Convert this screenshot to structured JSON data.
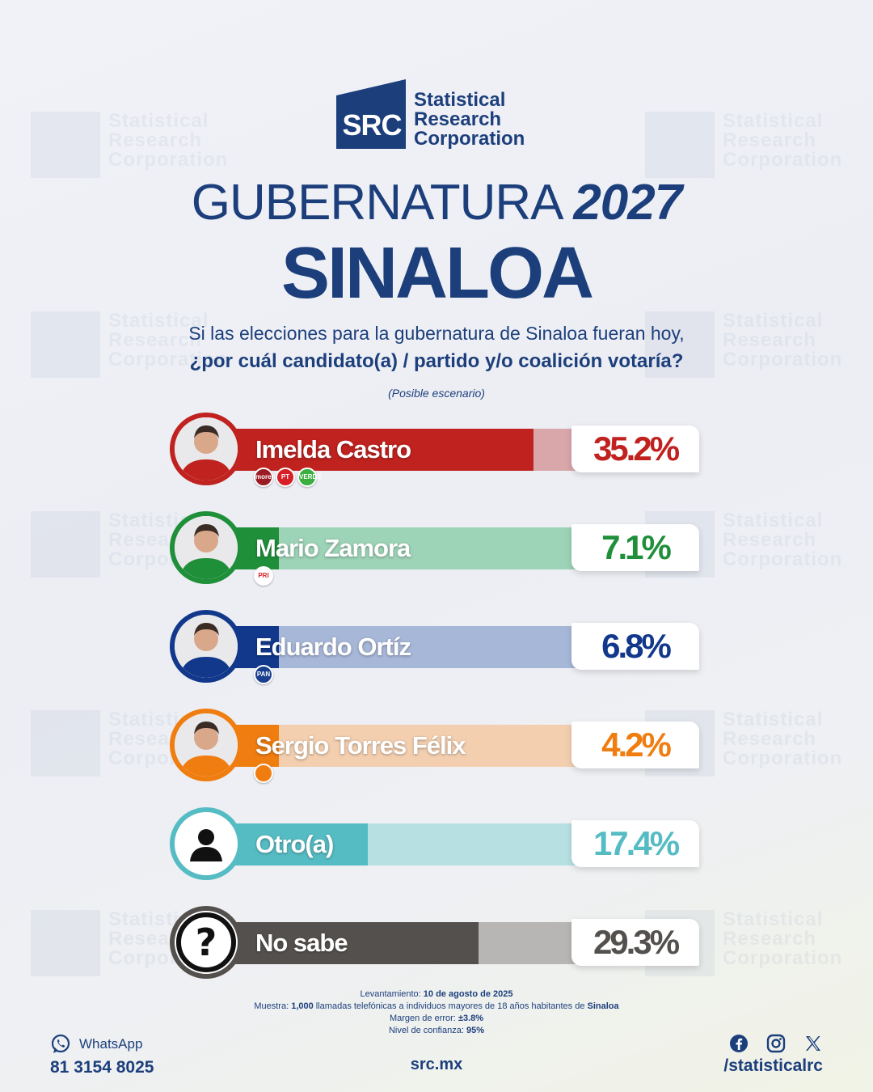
{
  "brand": {
    "logo_abbr": "SRC",
    "name_lines": [
      "Statistical",
      "Research",
      "Corporation"
    ]
  },
  "header": {
    "title_word": "GUBERNATURA",
    "title_year": "2027",
    "state": "SINALOA",
    "question_line1": "Si las elecciones para la gubernatura de Sinaloa fueran hoy,",
    "question_line2": "¿por cuál candidato(a) / partido y/o coalición votaría?",
    "scenario": "(Posible escenario)"
  },
  "chart_data": {
    "type": "bar",
    "categories": [
      "Imelda Castro",
      "Mario Zamora",
      "Eduardo Ortíz",
      "Sergio Torres Félix",
      "Otro(a)",
      "No sabe"
    ],
    "values": [
      35.2,
      7.1,
      6.8,
      4.2,
      17.4,
      29.3
    ],
    "value_labels": [
      "35.2%",
      "7.1%",
      "6.8%",
      "4.2%",
      "17.4%",
      "29.3%"
    ],
    "xlim": [
      0,
      40
    ],
    "colors": [
      "#c0221f",
      "#1f8f3a",
      "#12388c",
      "#f07d10",
      "#56bcc4",
      "#54504d"
    ],
    "track_colors": [
      "#d9a6aa",
      "#9dd3b6",
      "#a7b7d8",
      "#f3cfb0",
      "#b7e0e3",
      "#b8b6b5"
    ],
    "parties": [
      [
        {
          "label": "morena",
          "color": "#9b1b25"
        },
        {
          "label": "PT",
          "color": "#d71f26"
        },
        {
          "label": "VERDE",
          "color": "#3aae3f"
        }
      ],
      [
        {
          "label": "PRI",
          "color": "#ffffff"
        }
      ],
      [
        {
          "label": "PAN",
          "color": "#1a3f8f"
        }
      ],
      [
        {
          "label": "",
          "color": "#f07d10"
        }
      ],
      [],
      []
    ],
    "avatar_icons": [
      "person-photo-icon",
      "person-photo-icon",
      "person-photo-icon",
      "person-photo-icon",
      "user-silhouette-icon",
      "question-mark-icon"
    ]
  },
  "footer": {
    "survey_label": "Levantamiento:",
    "survey_date": "10 de agosto de 2025",
    "sample_label": "Muestra:",
    "sample_size": "1,000",
    "sample_desc": "llamadas telefónicas a individuos mayores de 18 años habitantes de",
    "sample_state": "Sinaloa",
    "margin_label": "Margen de error:",
    "margin_value": "±3.8%",
    "confidence_label": "Nivel de confianza:",
    "confidence_value": "95%",
    "whatsapp_label": "WhatsApp",
    "whatsapp_number": "81 3154 8025",
    "site": "src.mx",
    "handle": "/statisticalrc",
    "social_icons": [
      "facebook-icon",
      "instagram-icon",
      "x-icon"
    ]
  }
}
